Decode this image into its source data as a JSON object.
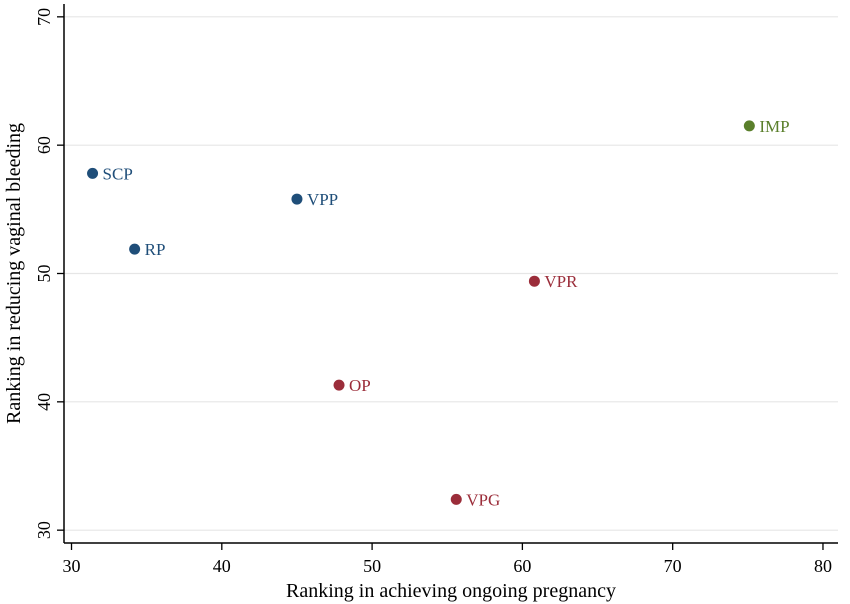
{
  "chart_data": {
    "type": "scatter",
    "title": "",
    "xlabel": "Ranking in achieving ongoing pregnancy",
    "ylabel": "Ranking in reducing vaginal bleeding",
    "xlim": [
      29.5,
      81
    ],
    "ylim": [
      29,
      71
    ],
    "xticks": [
      30,
      40,
      50,
      60,
      70,
      80
    ],
    "yticks": [
      30,
      40,
      50,
      60,
      70
    ],
    "grid": "horizontal",
    "legend": "none",
    "colors": {
      "blue": "#1f4e79",
      "red": "#9b2d3a",
      "green": "#5a7f2b"
    },
    "points": [
      {
        "label": "SCP",
        "x": 31.4,
        "y": 57.8,
        "color": "#1f4e79"
      },
      {
        "label": "RP",
        "x": 34.2,
        "y": 51.9,
        "color": "#1f4e79"
      },
      {
        "label": "VPP",
        "x": 45.0,
        "y": 55.8,
        "color": "#1f4e79"
      },
      {
        "label": "OP",
        "x": 47.8,
        "y": 41.3,
        "color": "#9b2d3a"
      },
      {
        "label": "VPG",
        "x": 55.6,
        "y": 32.4,
        "color": "#9b2d3a"
      },
      {
        "label": "VPR",
        "x": 60.8,
        "y": 49.4,
        "color": "#9b2d3a"
      },
      {
        "label": "IMP",
        "x": 75.1,
        "y": 61.5,
        "color": "#5a7f2b"
      }
    ]
  }
}
